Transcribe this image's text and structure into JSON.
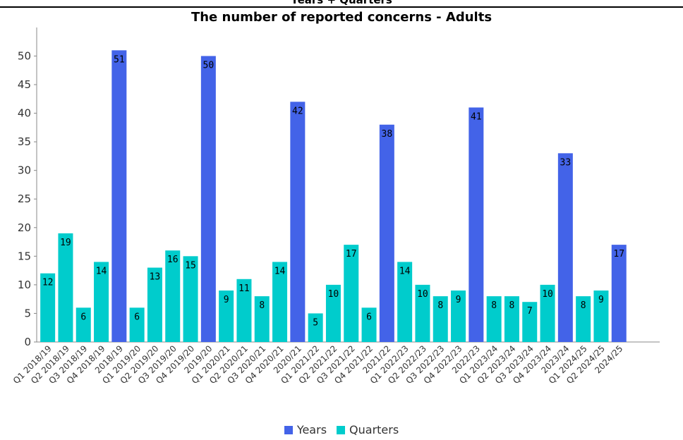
{
  "header": {
    "supertitle": "Years + Quarters"
  },
  "chart_data": {
    "type": "bar",
    "title": "The number of reported concerns - Adults",
    "xlabel": "",
    "ylabel": "",
    "ylim": [
      0,
      54
    ],
    "yticks": [
      0,
      5,
      10,
      15,
      20,
      25,
      30,
      35,
      40,
      45,
      50
    ],
    "grid": false,
    "legend_position": "bottom",
    "categories": [
      "Q1 2018/19",
      "Q2 2018/19",
      "Q3 2018/19",
      "Q4 2018/19",
      "2018/19",
      "Q1 2019/20",
      "Q2 2019/20",
      "Q3 2019/20",
      "Q4 2019/20",
      "2019/20",
      "Q1 2020/21",
      "Q2 2020/21",
      "Q3 2020/21",
      "Q4 2020/21",
      "2020/21",
      "Q1 2021/22",
      "Q2 2021/22",
      "Q3 2021/22",
      "Q4 2021/22",
      "2021/22",
      "Q1 2022/23",
      "Q2 2022/23",
      "Q3 2022/23",
      "Q4 2022/23",
      "2022/23",
      "Q1 2023/24",
      "Q2 2023/24",
      "Q3 2023/24",
      "Q4 2023/24",
      "2023/24",
      "Q1 2024/25",
      "Q2 2024/25",
      "2024/25"
    ],
    "values": [
      12,
      19,
      6,
      14,
      51,
      6,
      13,
      16,
      15,
      50,
      9,
      11,
      8,
      14,
      42,
      5,
      10,
      17,
      6,
      38,
      14,
      10,
      8,
      9,
      41,
      8,
      8,
      7,
      10,
      33,
      8,
      9,
      17
    ],
    "series_of_bar": [
      "Quarters",
      "Quarters",
      "Quarters",
      "Quarters",
      "Years",
      "Quarters",
      "Quarters",
      "Quarters",
      "Quarters",
      "Years",
      "Quarters",
      "Quarters",
      "Quarters",
      "Quarters",
      "Years",
      "Quarters",
      "Quarters",
      "Quarters",
      "Quarters",
      "Years",
      "Quarters",
      "Quarters",
      "Quarters",
      "Quarters",
      "Years",
      "Quarters",
      "Quarters",
      "Quarters",
      "Quarters",
      "Years",
      "Quarters",
      "Quarters",
      "Years"
    ],
    "series": [
      {
        "name": "Years",
        "color": "#4363e8"
      },
      {
        "name": "Quarters",
        "color": "#00cccc"
      }
    ]
  }
}
